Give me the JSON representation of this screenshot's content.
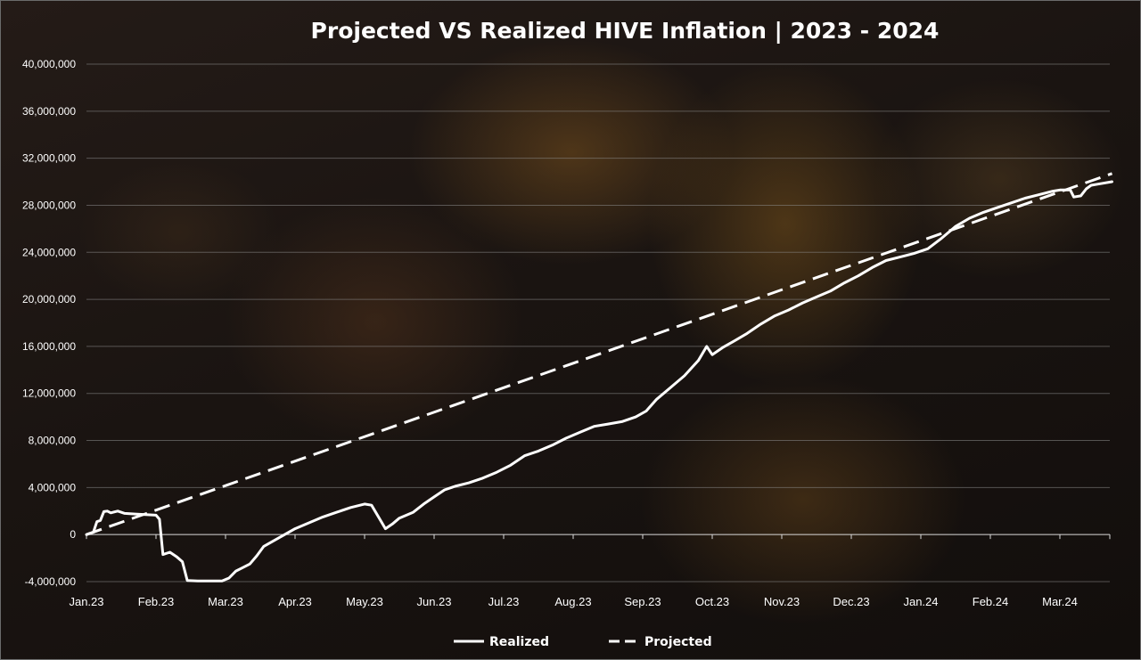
{
  "chart_data": {
    "type": "line",
    "title": "Projected VS Realized HIVE Inflation | 2023 - 2024",
    "xlabel": "",
    "ylabel": "",
    "x_ticks": [
      "Jan.23",
      "Feb.23",
      "Mar.23",
      "Apr.23",
      "May.23",
      "Jun.23",
      "Jul.23",
      "Aug.23",
      "Sep.23",
      "Oct.23",
      "Nov.23",
      "Dec.23",
      "Jan.24",
      "Feb.24",
      "Mar.24"
    ],
    "y_ticks": [
      "-4,000,000",
      "0",
      "4,000,000",
      "8,000,000",
      "12,000,000",
      "16,000,000",
      "20,000,000",
      "24,000,000",
      "28,000,000",
      "32,000,000",
      "36,000,000",
      "40,000,000"
    ],
    "ylim": [
      -4000000,
      40000000
    ],
    "xlim": [
      0,
      14.75
    ],
    "grid": true,
    "legend_position": "bottom",
    "series": [
      {
        "name": "Realized",
        "style": "solid",
        "color": "#ffffff",
        "points": [
          [
            0,
            0
          ],
          [
            0.1,
            200000
          ],
          [
            0.15,
            1100000
          ],
          [
            0.2,
            1200000
          ],
          [
            0.25,
            1950000
          ],
          [
            0.3,
            2000000
          ],
          [
            0.35,
            1850000
          ],
          [
            0.45,
            2000000
          ],
          [
            0.55,
            1800000
          ],
          [
            0.7,
            1750000
          ],
          [
            0.85,
            1700000
          ],
          [
            1.0,
            1650000
          ],
          [
            1.05,
            1300000
          ],
          [
            1.1,
            -1700000
          ],
          [
            1.2,
            -1500000
          ],
          [
            1.3,
            -1900000
          ],
          [
            1.38,
            -2300000
          ],
          [
            1.45,
            -3900000
          ],
          [
            1.6,
            -3950000
          ],
          [
            1.8,
            -3950000
          ],
          [
            1.95,
            -3950000
          ],
          [
            2.05,
            -3700000
          ],
          [
            2.15,
            -3100000
          ],
          [
            2.25,
            -2800000
          ],
          [
            2.35,
            -2500000
          ],
          [
            2.45,
            -1800000
          ],
          [
            2.55,
            -1000000
          ],
          [
            2.7,
            -500000
          ],
          [
            2.85,
            0
          ],
          [
            3.0,
            500000
          ],
          [
            3.2,
            1000000
          ],
          [
            3.4,
            1500000
          ],
          [
            3.6,
            1900000
          ],
          [
            3.8,
            2300000
          ],
          [
            4.0,
            2600000
          ],
          [
            4.1,
            2500000
          ],
          [
            4.2,
            1500000
          ],
          [
            4.3,
            500000
          ],
          [
            4.4,
            900000
          ],
          [
            4.5,
            1400000
          ],
          [
            4.7,
            1900000
          ],
          [
            4.85,
            2600000
          ],
          [
            5.0,
            3200000
          ],
          [
            5.15,
            3800000
          ],
          [
            5.3,
            4100000
          ],
          [
            5.5,
            4400000
          ],
          [
            5.7,
            4800000
          ],
          [
            5.9,
            5300000
          ],
          [
            6.1,
            5900000
          ],
          [
            6.3,
            6700000
          ],
          [
            6.5,
            7100000
          ],
          [
            6.7,
            7600000
          ],
          [
            6.9,
            8200000
          ],
          [
            7.1,
            8700000
          ],
          [
            7.3,
            9200000
          ],
          [
            7.5,
            9400000
          ],
          [
            7.7,
            9600000
          ],
          [
            7.9,
            10000000
          ],
          [
            8.05,
            10500000
          ],
          [
            8.2,
            11500000
          ],
          [
            8.4,
            12500000
          ],
          [
            8.6,
            13500000
          ],
          [
            8.8,
            14800000
          ],
          [
            8.92,
            16000000
          ],
          [
            9.0,
            15300000
          ],
          [
            9.15,
            15900000
          ],
          [
            9.3,
            16400000
          ],
          [
            9.5,
            17100000
          ],
          [
            9.7,
            17900000
          ],
          [
            9.9,
            18600000
          ],
          [
            10.1,
            19100000
          ],
          [
            10.3,
            19700000
          ],
          [
            10.5,
            20200000
          ],
          [
            10.7,
            20700000
          ],
          [
            10.9,
            21400000
          ],
          [
            11.1,
            22000000
          ],
          [
            11.3,
            22700000
          ],
          [
            11.5,
            23300000
          ],
          [
            11.7,
            23600000
          ],
          [
            11.9,
            23900000
          ],
          [
            12.1,
            24300000
          ],
          [
            12.3,
            25200000
          ],
          [
            12.5,
            26200000
          ],
          [
            12.7,
            26900000
          ],
          [
            12.9,
            27400000
          ],
          [
            13.1,
            27800000
          ],
          [
            13.3,
            28200000
          ],
          [
            13.5,
            28600000
          ],
          [
            13.7,
            28900000
          ],
          [
            13.9,
            29200000
          ],
          [
            14.0,
            29300000
          ],
          [
            14.15,
            29300000
          ],
          [
            14.2,
            28700000
          ],
          [
            14.3,
            28800000
          ],
          [
            14.38,
            29400000
          ],
          [
            14.45,
            29700000
          ],
          [
            14.55,
            29800000
          ],
          [
            14.75,
            30000000
          ]
        ]
      },
      {
        "name": "Projected",
        "style": "dashed",
        "color": "#ffffff",
        "points": [
          [
            0,
            0
          ],
          [
            14.75,
            30700000
          ]
        ]
      }
    ]
  }
}
